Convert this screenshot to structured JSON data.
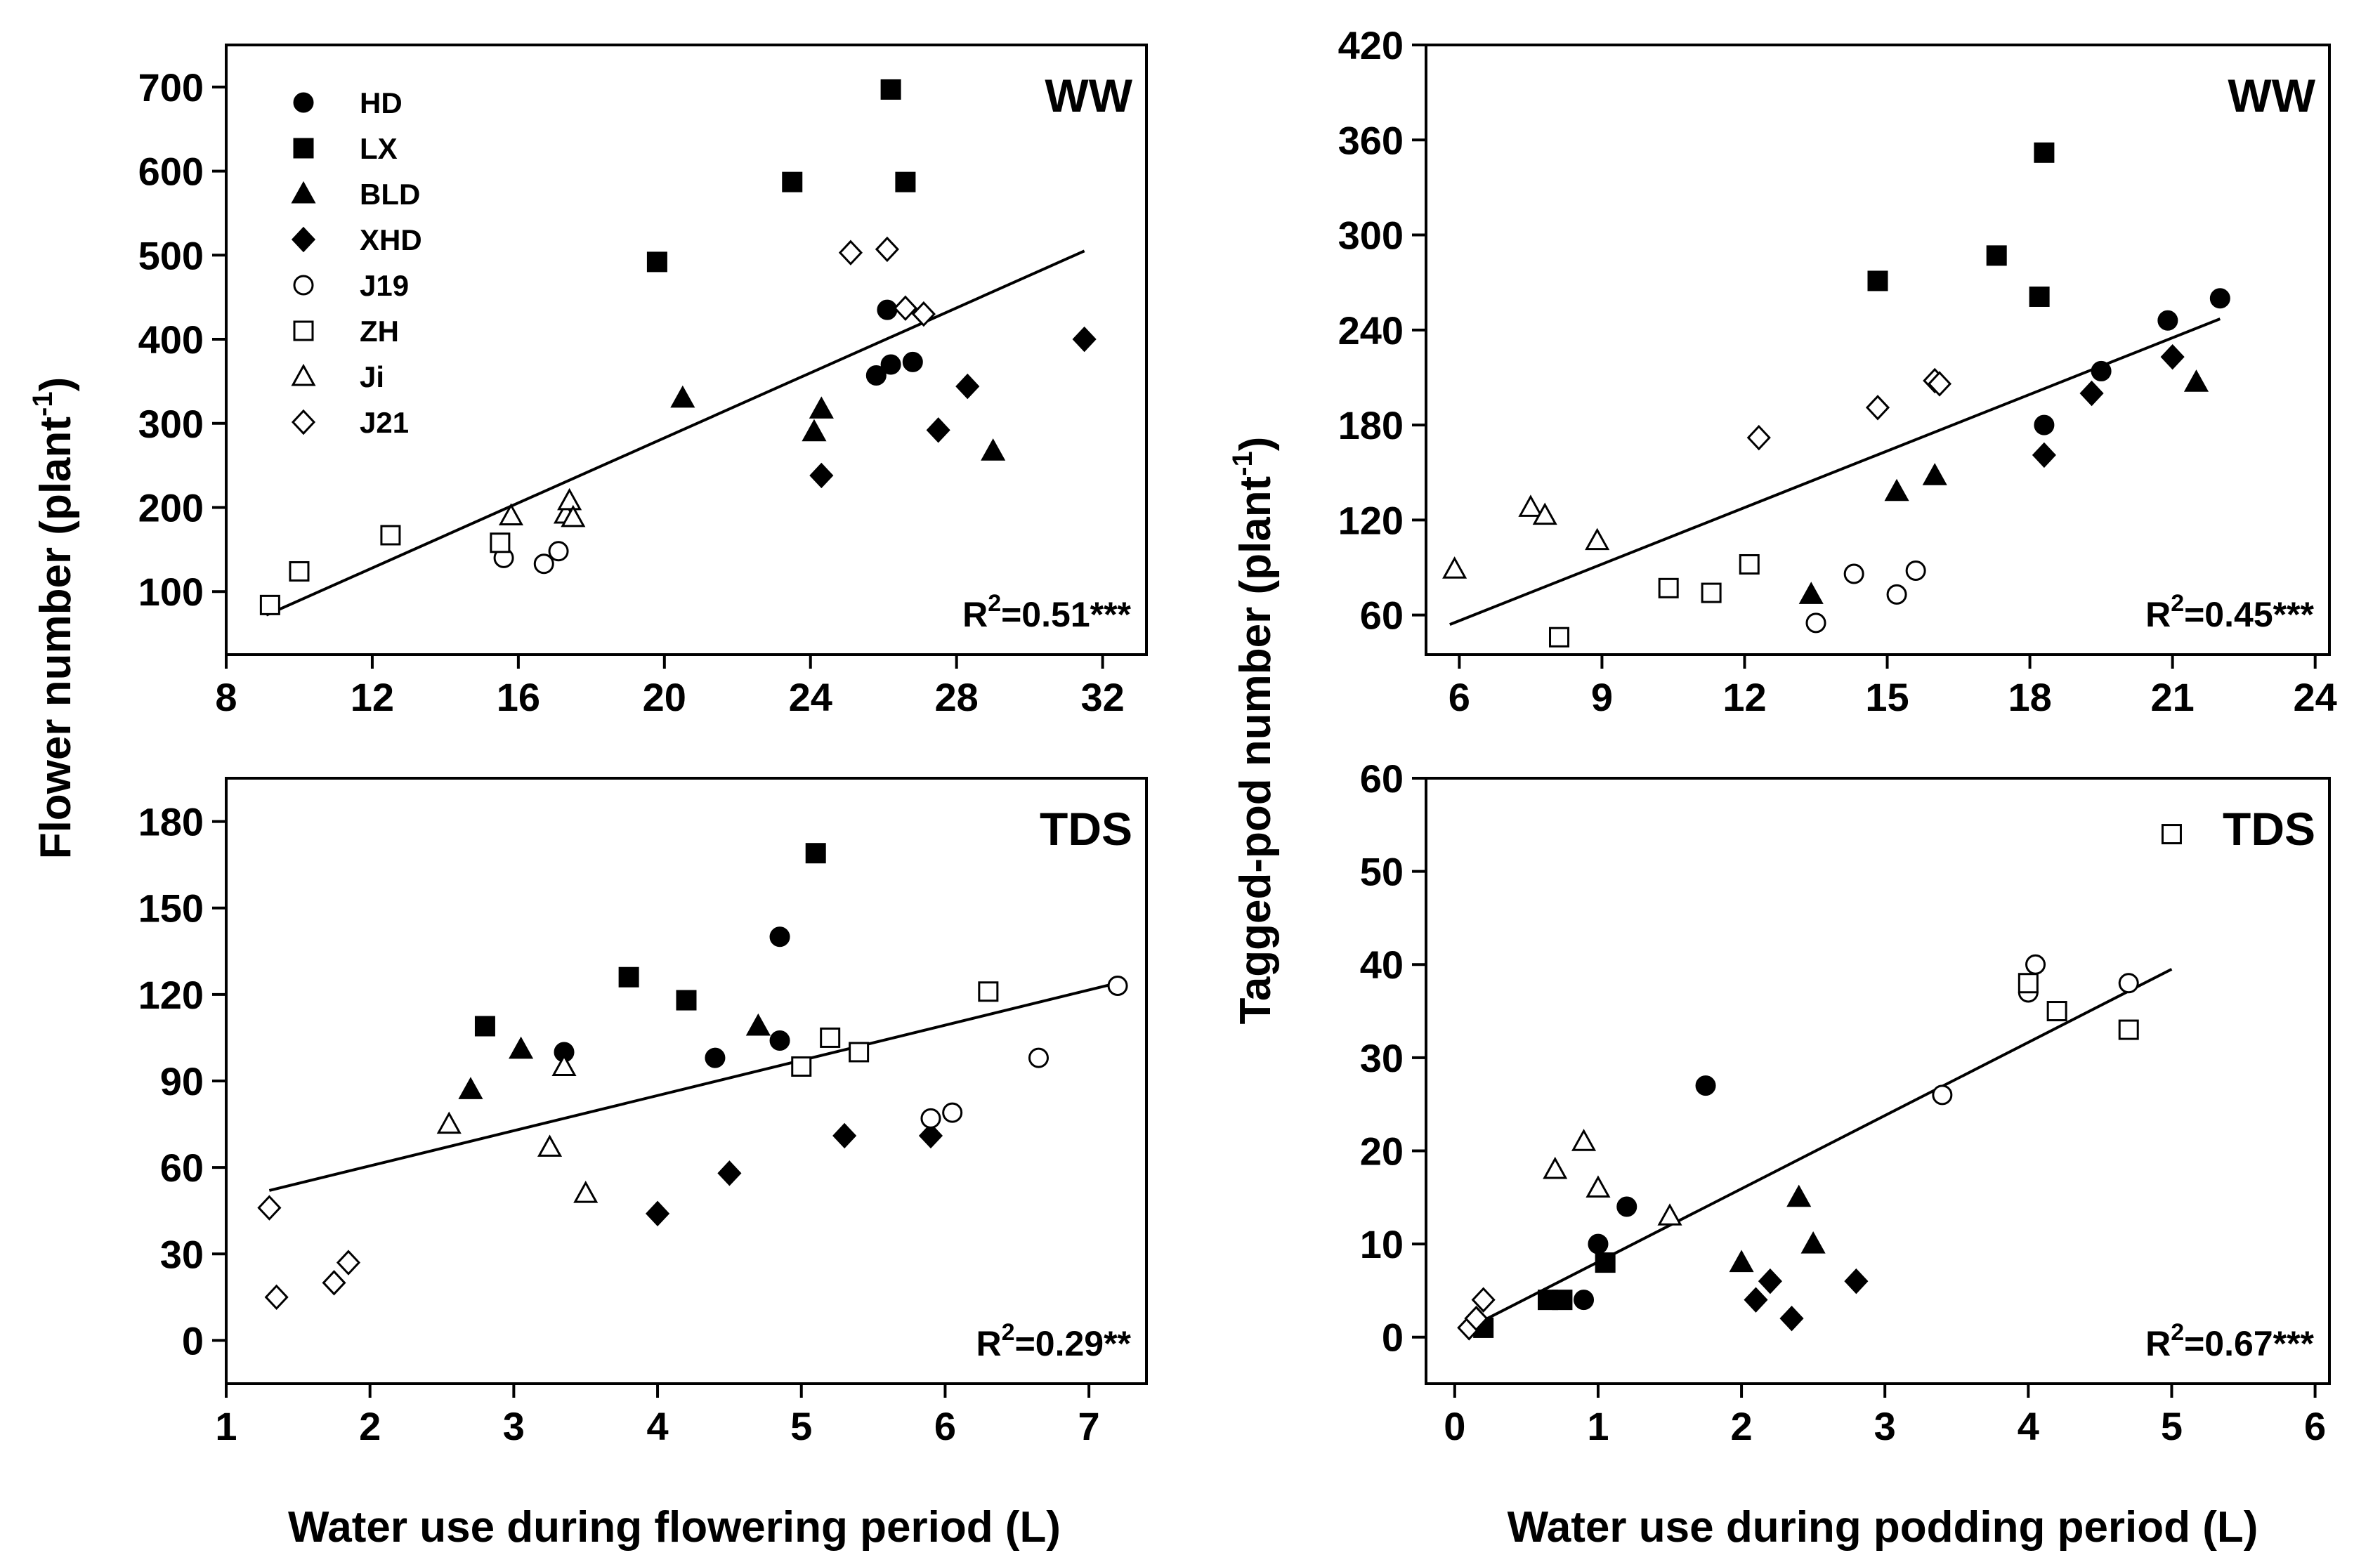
{
  "figure": {
    "ylabel_left": "Flower number (plant",
    "ylabel_left_sup": "-1",
    "ylabel_left_close": ")",
    "ylabel_right": "Tagged-pod number (plant",
    "ylabel_right_sup": "-1",
    "ylabel_right_close": ")",
    "xlabel_left": "Water use during flowering period (L)",
    "xlabel_right": "Water use during podding period (L)"
  },
  "legend": [
    {
      "label": "HD",
      "marker": "circle",
      "filled": true
    },
    {
      "label": "LX",
      "marker": "square",
      "filled": true
    },
    {
      "label": "BLD",
      "marker": "triangle",
      "filled": true
    },
    {
      "label": "XHD",
      "marker": "diamond",
      "filled": true
    },
    {
      "label": "J19",
      "marker": "circle",
      "filled": false
    },
    {
      "label": "ZH",
      "marker": "square",
      "filled": false
    },
    {
      "label": "Ji",
      "marker": "triangle",
      "filled": false
    },
    {
      "label": "J21",
      "marker": "diamond",
      "filled": false
    }
  ],
  "chart_data": [
    {
      "id": "ww-flower",
      "type": "scatter",
      "label": "WW",
      "r2_prefix": "R",
      "r2_sup": "2",
      "r2_value": "=0.51***",
      "xlim": [
        8,
        33.2
      ],
      "ylim": [
        25,
        750
      ],
      "xticks": [
        "8",
        "12",
        "16",
        "20",
        "24",
        "28",
        "32"
      ],
      "yticks": [
        "100",
        "200",
        "300",
        "400",
        "500",
        "600",
        "700"
      ],
      "fit": [
        [
          9.1,
          72
        ],
        [
          31.5,
          505
        ]
      ],
      "series": [
        {
          "name": "HD",
          "points": [
            [
              25.8,
              357
            ],
            [
              26.2,
              370
            ],
            [
              26.8,
              373
            ],
            [
              26.1,
              435
            ]
          ]
        },
        {
          "name": "LX",
          "points": [
            [
              19.8,
              492
            ],
            [
              23.5,
              587
            ],
            [
              26.2,
              697
            ],
            [
              26.6,
              587
            ]
          ]
        },
        {
          "name": "BLD",
          "points": [
            [
              20.5,
              330
            ],
            [
              24.3,
              317
            ],
            [
              24.1,
              290
            ],
            [
              29.0,
              267
            ]
          ]
        },
        {
          "name": "XHD",
          "points": [
            [
              24.3,
              238
            ],
            [
              27.5,
              292
            ],
            [
              28.3,
              344
            ],
            [
              31.5,
              400
            ]
          ]
        },
        {
          "name": "J19",
          "points": [
            [
              15.6,
              140
            ],
            [
              16.7,
              133
            ],
            [
              17.1,
              148
            ]
          ]
        },
        {
          "name": "ZH",
          "points": [
            [
              9.2,
              84
            ],
            [
              10.0,
              124
            ],
            [
              12.5,
              167
            ],
            [
              15.5,
              158
            ]
          ]
        },
        {
          "name": "Ji",
          "points": [
            [
              15.8,
              190
            ],
            [
              17.3,
              192
            ],
            [
              17.4,
              208
            ],
            [
              17.5,
              188
            ]
          ]
        },
        {
          "name": "J21",
          "points": [
            [
              25.1,
              503
            ],
            [
              26.1,
              507
            ],
            [
              26.6,
              437
            ],
            [
              27.1,
              430
            ]
          ]
        }
      ]
    },
    {
      "id": "ww-pod",
      "type": "scatter",
      "label": "WW",
      "r2_prefix": "R",
      "r2_sup": "2",
      "r2_value": "=0.45***",
      "xlim": [
        5.3,
        24.3
      ],
      "ylim": [
        35,
        420
      ],
      "xticks": [
        "6",
        "9",
        "12",
        "15",
        "18",
        "21",
        "24"
      ],
      "yticks": [
        "60",
        "120",
        "180",
        "240",
        "300",
        "360",
        "420"
      ],
      "fit": [
        [
          5.8,
          54
        ],
        [
          22.0,
          247
        ]
      ],
      "series": [
        {
          "name": "HD",
          "points": [
            [
              20.9,
              246
            ],
            [
              22.0,
              260
            ],
            [
              19.5,
              214
            ],
            [
              18.3,
              180
            ]
          ]
        },
        {
          "name": "LX",
          "points": [
            [
              14.8,
              271
            ],
            [
              17.3,
              287
            ],
            [
              18.2,
              261
            ],
            [
              18.3,
              352
            ]
          ]
        },
        {
          "name": "BLD",
          "points": [
            [
              13.4,
              73
            ],
            [
              15.2,
              138
            ],
            [
              16.0,
              148
            ],
            [
              21.5,
              207
            ]
          ]
        },
        {
          "name": "XHD",
          "points": [
            [
              18.3,
              161
            ],
            [
              19.3,
              200
            ],
            [
              21.0,
              223
            ]
          ]
        },
        {
          "name": "J19",
          "points": [
            [
              13.5,
              55
            ],
            [
              14.3,
              86
            ],
            [
              15.2,
              73
            ],
            [
              15.6,
              88
            ]
          ]
        },
        {
          "name": "ZH",
          "points": [
            [
              8.1,
              46
            ],
            [
              10.4,
              77
            ],
            [
              11.3,
              74
            ],
            [
              12.1,
              92
            ]
          ]
        },
        {
          "name": "Ji",
          "points": [
            [
              5.9,
              89
            ],
            [
              7.5,
              128
            ],
            [
              7.8,
              123
            ],
            [
              8.9,
              107
            ]
          ]
        },
        {
          "name": "J21",
          "points": [
            [
              12.3,
              172
            ],
            [
              14.8,
              191
            ],
            [
              16.0,
              208
            ],
            [
              16.1,
              206
            ]
          ]
        }
      ]
    },
    {
      "id": "tds-flower",
      "type": "scatter",
      "label": "TDS",
      "r2_prefix": "R",
      "r2_sup": "2",
      "r2_value": "=0.29**",
      "xlim": [
        1,
        7.4
      ],
      "ylim": [
        -15,
        195
      ],
      "xticks": [
        "1",
        "2",
        "3",
        "4",
        "5",
        "6",
        "7"
      ],
      "yticks": [
        "0",
        "30",
        "60",
        "90",
        "120",
        "150",
        "180"
      ],
      "fit": [
        [
          1.3,
          52
        ],
        [
          7.2,
          124
        ]
      ],
      "series": [
        {
          "name": "HD",
          "points": [
            [
              3.35,
              100
            ],
            [
              4.4,
              98
            ],
            [
              4.85,
              104
            ],
            [
              4.85,
              140
            ]
          ]
        },
        {
          "name": "LX",
          "points": [
            [
              2.8,
              109
            ],
            [
              3.8,
              126
            ],
            [
              4.2,
              118
            ],
            [
              5.1,
              169
            ]
          ]
        },
        {
          "name": "BLD",
          "points": [
            [
              2.7,
              87
            ],
            [
              3.05,
              101
            ],
            [
              4.7,
              109
            ]
          ]
        },
        {
          "name": "XHD",
          "points": [
            [
              4.0,
              44
            ],
            [
              4.5,
              58
            ],
            [
              5.3,
              71
            ],
            [
              5.9,
              71
            ]
          ]
        },
        {
          "name": "J19",
          "points": [
            [
              5.9,
              77
            ],
            [
              6.05,
              79
            ],
            [
              6.65,
              98
            ],
            [
              7.2,
              123
            ]
          ]
        },
        {
          "name": "ZH",
          "points": [
            [
              5.0,
              95
            ],
            [
              5.2,
              105
            ],
            [
              5.4,
              100
            ],
            [
              6.3,
              121
            ]
          ]
        },
        {
          "name": "Ji",
          "points": [
            [
              2.55,
              75
            ],
            [
              3.25,
              67
            ],
            [
              3.35,
              95
            ],
            [
              3.5,
              51
            ]
          ]
        },
        {
          "name": "J21",
          "points": [
            [
              1.3,
              46
            ],
            [
              1.35,
              15
            ],
            [
              1.75,
              20
            ],
            [
              1.85,
              27
            ]
          ]
        }
      ]
    },
    {
      "id": "tds-pod",
      "type": "scatter",
      "label": "TDS",
      "r2_prefix": "R",
      "r2_sup": "2",
      "r2_value": "=0.67***",
      "xlim": [
        -0.2,
        6.1
      ],
      "ylim": [
        -5,
        60
      ],
      "xticks": [
        "0",
        "1",
        "2",
        "3",
        "4",
        "5",
        "6"
      ],
      "yticks": [
        "0",
        "10",
        "20",
        "30",
        "40",
        "50",
        "60"
      ],
      "fit": [
        [
          0.1,
          1
        ],
        [
          5.0,
          39.5
        ]
      ],
      "series": [
        {
          "name": "HD",
          "points": [
            [
              0.9,
              4
            ],
            [
              1.0,
              10
            ],
            [
              1.2,
              14
            ],
            [
              1.75,
              27
            ]
          ]
        },
        {
          "name": "LX",
          "points": [
            [
              0.2,
              1
            ],
            [
              0.65,
              4
            ],
            [
              0.75,
              4
            ],
            [
              1.05,
              8
            ]
          ]
        },
        {
          "name": "BLD",
          "points": [
            [
              2.0,
              8
            ],
            [
              2.4,
              15
            ],
            [
              2.5,
              10
            ]
          ]
        },
        {
          "name": "XHD",
          "points": [
            [
              2.1,
              4
            ],
            [
              2.2,
              6
            ],
            [
              2.35,
              2
            ],
            [
              2.8,
              6
            ]
          ]
        },
        {
          "name": "J19",
          "points": [
            [
              3.4,
              26
            ],
            [
              4.0,
              37
            ],
            [
              4.05,
              40
            ],
            [
              4.7,
              38
            ]
          ]
        },
        {
          "name": "ZH",
          "points": [
            [
              4.0,
              38
            ],
            [
              4.2,
              35
            ],
            [
              4.7,
              33
            ],
            [
              5.0,
              54
            ]
          ]
        },
        {
          "name": "Ji",
          "points": [
            [
              0.7,
              18
            ],
            [
              0.9,
              21
            ],
            [
              1.0,
              16
            ],
            [
              1.5,
              13
            ]
          ]
        },
        {
          "name": "J21",
          "points": [
            [
              0.1,
              1
            ],
            [
              0.15,
              2
            ],
            [
              0.2,
              4
            ]
          ]
        }
      ]
    }
  ]
}
